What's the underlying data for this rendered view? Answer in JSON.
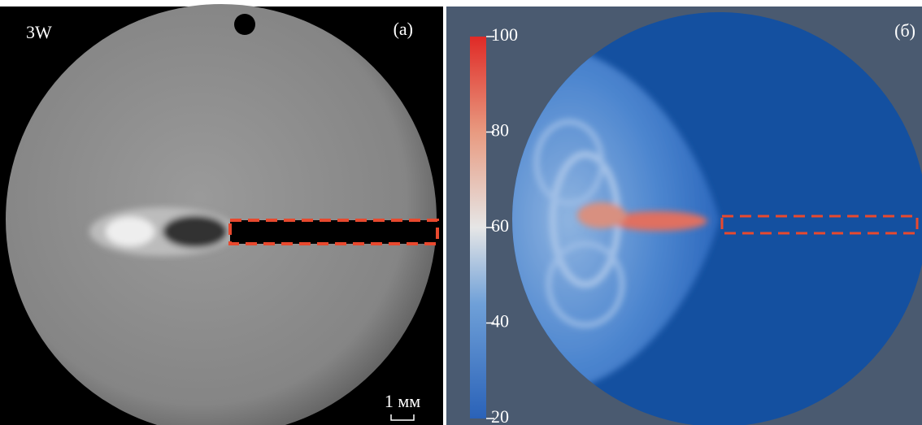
{
  "panel_a": {
    "label": "(a)",
    "tag": "3W",
    "scale_label": "1 мм"
  },
  "panel_b": {
    "label": "(б)",
    "colorbar": {
      "lim": [
        20,
        100
      ],
      "ticks": [
        20,
        40,
        60,
        80,
        100
      ]
    }
  }
}
